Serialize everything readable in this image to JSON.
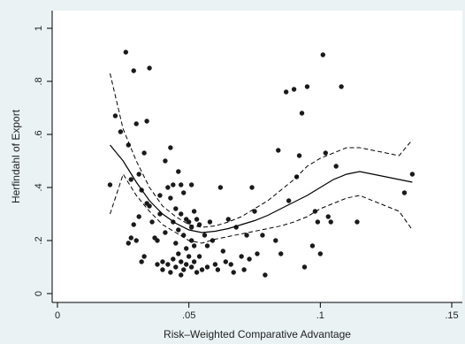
{
  "chart_data": {
    "type": "scatter",
    "xlabel": "Risk–Weighted Comparative Advantage",
    "ylabel": "Herfindahl of Export",
    "xlim": [
      0,
      0.15
    ],
    "ylim": [
      0,
      1
    ],
    "xticks": [
      {
        "value": 0,
        "label": "0"
      },
      {
        "value": 0.05,
        "label": ".05"
      },
      {
        "value": 0.1,
        "label": ".1"
      },
      {
        "value": 0.15,
        "label": ".15"
      }
    ],
    "yticks": [
      {
        "value": 0,
        "label": "0"
      },
      {
        "value": 0.2,
        "label": ".2"
      },
      {
        "value": 0.4,
        "label": ".4"
      },
      {
        "value": 0.6,
        "label": ".6"
      },
      {
        "value": 0.8,
        "label": ".8"
      },
      {
        "value": 1,
        "label": "1"
      }
    ],
    "grid": false,
    "legend": "none",
    "colors": {
      "page_background": "#eaf2f3",
      "plot_background": "#ffffff",
      "marker": "#1a1a1a",
      "line": "#000000"
    },
    "points": [
      [
        0.02,
        0.41
      ],
      [
        0.022,
        0.67
      ],
      [
        0.024,
        0.61
      ],
      [
        0.026,
        0.91
      ],
      [
        0.027,
        0.56
      ],
      [
        0.028,
        0.43
      ],
      [
        0.029,
        0.84
      ],
      [
        0.03,
        0.64
      ],
      [
        0.031,
        0.45
      ],
      [
        0.032,
        0.39
      ],
      [
        0.033,
        0.53
      ],
      [
        0.034,
        0.65
      ],
      [
        0.035,
        0.85
      ],
      [
        0.035,
        0.33
      ],
      [
        0.027,
        0.19
      ],
      [
        0.028,
        0.21
      ],
      [
        0.03,
        0.2
      ],
      [
        0.029,
        0.26
      ],
      [
        0.031,
        0.29
      ],
      [
        0.032,
        0.12
      ],
      [
        0.033,
        0.14
      ],
      [
        0.034,
        0.34
      ],
      [
        0.036,
        0.27
      ],
      [
        0.037,
        0.21
      ],
      [
        0.038,
        0.11
      ],
      [
        0.038,
        0.2
      ],
      [
        0.039,
        0.37
      ],
      [
        0.039,
        0.3
      ],
      [
        0.04,
        0.12
      ],
      [
        0.04,
        0.09
      ],
      [
        0.041,
        0.5
      ],
      [
        0.041,
        0.23
      ],
      [
        0.042,
        0.4
      ],
      [
        0.042,
        0.11
      ],
      [
        0.043,
        0.55
      ],
      [
        0.043,
        0.36
      ],
      [
        0.043,
        0.08
      ],
      [
        0.044,
        0.41
      ],
      [
        0.044,
        0.27
      ],
      [
        0.044,
        0.13
      ],
      [
        0.045,
        0.32
      ],
      [
        0.045,
        0.19
      ],
      [
        0.045,
        0.1
      ],
      [
        0.046,
        0.46
      ],
      [
        0.046,
        0.24
      ],
      [
        0.046,
        0.15
      ],
      [
        0.047,
        0.41
      ],
      [
        0.047,
        0.3
      ],
      [
        0.047,
        0.12
      ],
      [
        0.047,
        0.07
      ],
      [
        0.048,
        0.38
      ],
      [
        0.048,
        0.22
      ],
      [
        0.048,
        0.09
      ],
      [
        0.049,
        0.28
      ],
      [
        0.049,
        0.17
      ],
      [
        0.049,
        0.11
      ],
      [
        0.05,
        0.27
      ],
      [
        0.05,
        0.14
      ],
      [
        0.051,
        0.41
      ],
      [
        0.051,
        0.25
      ],
      [
        0.051,
        0.2
      ],
      [
        0.051,
        0.1
      ],
      [
        0.052,
        0.31
      ],
      [
        0.052,
        0.18
      ],
      [
        0.052,
        0.12
      ],
      [
        0.053,
        0.28
      ],
      [
        0.053,
        0.08
      ],
      [
        0.054,
        0.26
      ],
      [
        0.054,
        0.14
      ],
      [
        0.055,
        0.09
      ],
      [
        0.056,
        0.22
      ],
      [
        0.057,
        0.18
      ],
      [
        0.057,
        0.1
      ],
      [
        0.058,
        0.27
      ],
      [
        0.059,
        0.2
      ],
      [
        0.06,
        0.11
      ],
      [
        0.061,
        0.09
      ],
      [
        0.062,
        0.4
      ],
      [
        0.063,
        0.16
      ],
      [
        0.064,
        0.12
      ],
      [
        0.065,
        0.28
      ],
      [
        0.066,
        0.11
      ],
      [
        0.067,
        0.08
      ],
      [
        0.068,
        0.25
      ],
      [
        0.07,
        0.14
      ],
      [
        0.071,
        0.09
      ],
      [
        0.072,
        0.22
      ],
      [
        0.073,
        0.13
      ],
      [
        0.074,
        0.4
      ],
      [
        0.075,
        0.31
      ],
      [
        0.076,
        0.15
      ],
      [
        0.078,
        0.22
      ],
      [
        0.079,
        0.07
      ],
      [
        0.083,
        0.2
      ],
      [
        0.084,
        0.54
      ],
      [
        0.085,
        0.15
      ],
      [
        0.087,
        0.76
      ],
      [
        0.088,
        0.35
      ],
      [
        0.09,
        0.77
      ],
      [
        0.091,
        0.44
      ],
      [
        0.092,
        0.52
      ],
      [
        0.093,
        0.68
      ],
      [
        0.094,
        0.1
      ],
      [
        0.095,
        0.78
      ],
      [
        0.097,
        0.18
      ],
      [
        0.098,
        0.31
      ],
      [
        0.099,
        0.27
      ],
      [
        0.1,
        0.15
      ],
      [
        0.101,
        0.9
      ],
      [
        0.102,
        0.53
      ],
      [
        0.103,
        0.29
      ],
      [
        0.104,
        0.27
      ],
      [
        0.106,
        0.48
      ],
      [
        0.108,
        0.78
      ],
      [
        0.114,
        0.27
      ],
      [
        0.132,
        0.38
      ],
      [
        0.135,
        0.45
      ]
    ],
    "fit": {
      "x": [
        0.02,
        0.025,
        0.03,
        0.035,
        0.04,
        0.045,
        0.05,
        0.055,
        0.06,
        0.065,
        0.07,
        0.075,
        0.08,
        0.085,
        0.09,
        0.095,
        0.1,
        0.105,
        0.11,
        0.115,
        0.12,
        0.125,
        0.13,
        0.135
      ],
      "mid": [
        0.56,
        0.5,
        0.42,
        0.35,
        0.3,
        0.265,
        0.24,
        0.23,
        0.235,
        0.245,
        0.26,
        0.275,
        0.295,
        0.32,
        0.345,
        0.37,
        0.4,
        0.43,
        0.45,
        0.46,
        0.45,
        0.44,
        0.43,
        0.42
      ],
      "upper": [
        0.83,
        0.62,
        0.5,
        0.4,
        0.33,
        0.29,
        0.26,
        0.25,
        0.255,
        0.27,
        0.29,
        0.32,
        0.35,
        0.39,
        0.43,
        0.48,
        0.51,
        0.53,
        0.55,
        0.55,
        0.54,
        0.53,
        0.52,
        0.58
      ],
      "lower": [
        0.3,
        0.45,
        0.37,
        0.31,
        0.26,
        0.23,
        0.2,
        0.19,
        0.205,
        0.215,
        0.225,
        0.235,
        0.245,
        0.255,
        0.27,
        0.29,
        0.32,
        0.34,
        0.36,
        0.37,
        0.35,
        0.33,
        0.31,
        0.24
      ]
    }
  }
}
